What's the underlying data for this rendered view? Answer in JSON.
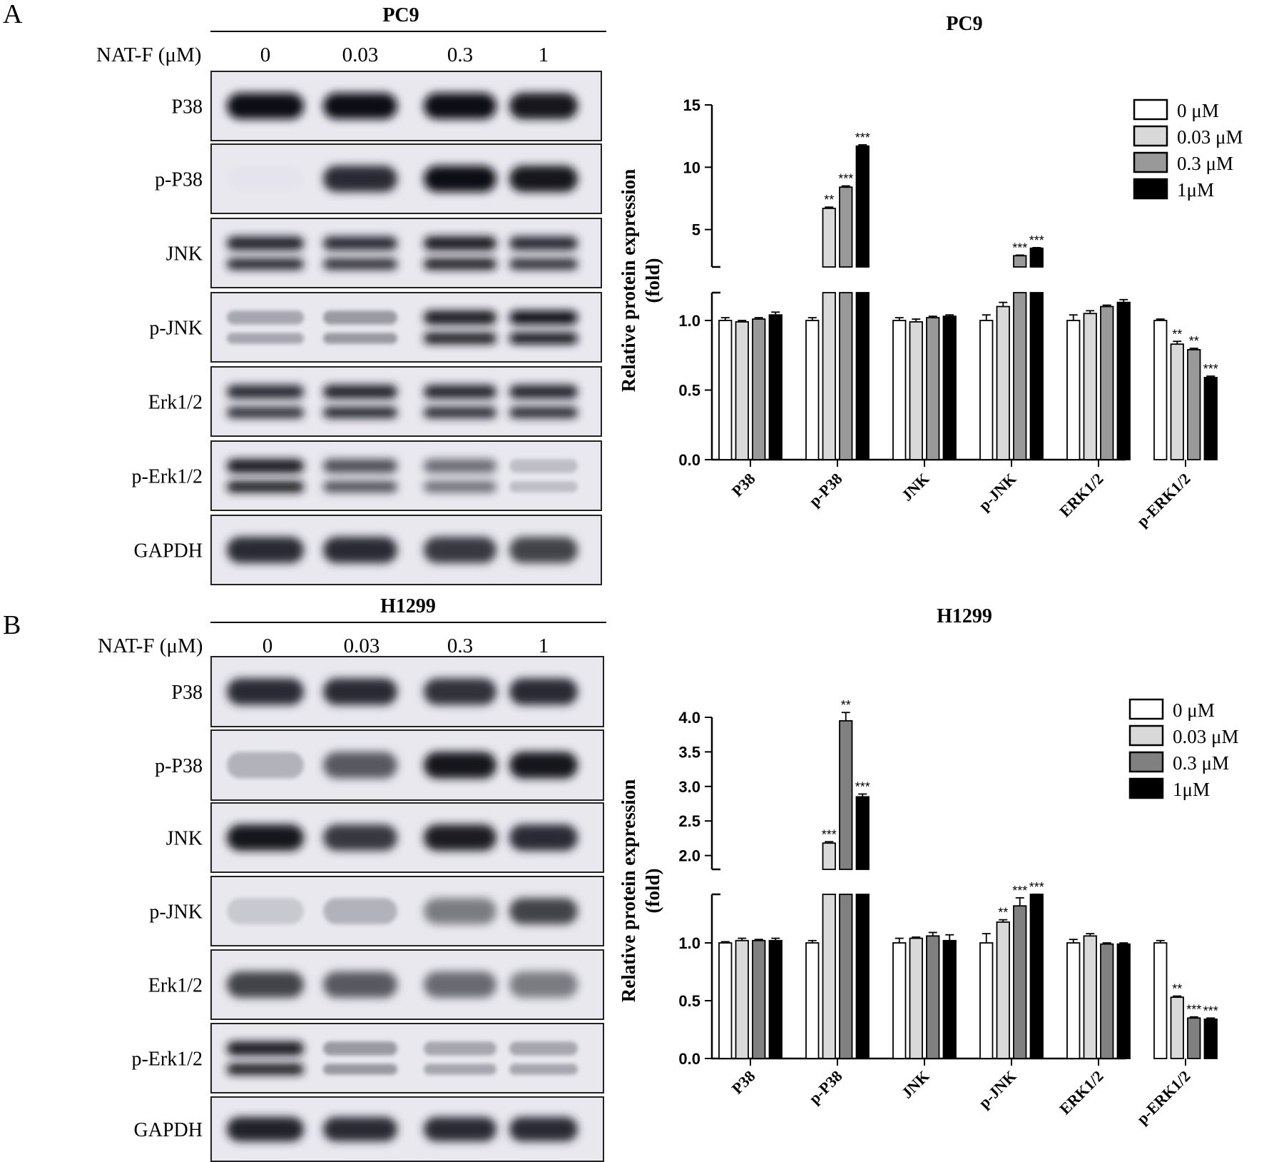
{
  "panels": [
    {
      "letter": "A",
      "cell_line": "PC9",
      "treatment_label": "NAT-F (μM)",
      "concentrations": [
        "0",
        "0.03",
        "0.3",
        "1"
      ],
      "blot_rows": [
        {
          "label": "P38",
          "intensity": [
            1.0,
            0.98,
            1.0,
            0.96
          ],
          "bands": 1
        },
        {
          "label": "p-P38",
          "intensity": [
            0.05,
            0.85,
            1.0,
            0.95
          ],
          "bands": 1
        },
        {
          "label": "JNK",
          "intensity": [
            0.9,
            0.85,
            0.95,
            0.85
          ],
          "bands": 2
        },
        {
          "label": "p-JNK",
          "intensity": [
            0.4,
            0.45,
            0.95,
            1.0
          ],
          "bands": 2
        },
        {
          "label": "Erk1/2",
          "intensity": [
            0.85,
            0.9,
            0.88,
            0.88
          ],
          "bands": 2
        },
        {
          "label": "p-Erk1/2",
          "intensity": [
            0.95,
            0.7,
            0.6,
            0.3
          ],
          "bands": 2
        },
        {
          "label": "GAPDH",
          "intensity": [
            0.85,
            0.85,
            0.8,
            0.75
          ],
          "bands": 1
        }
      ]
    },
    {
      "letter": "B",
      "cell_line": "H1299",
      "treatment_label": "NAT-F (μM)",
      "concentrations": [
        "0",
        "0.03",
        "0.3",
        "1"
      ],
      "blot_rows": [
        {
          "label": "P38",
          "intensity": [
            0.85,
            0.85,
            0.82,
            0.85
          ],
          "bands": 1
        },
        {
          "label": "p-P38",
          "intensity": [
            0.35,
            0.65,
            0.95,
            0.95
          ],
          "bands": 1
        },
        {
          "label": "JNK",
          "intensity": [
            0.95,
            0.8,
            0.92,
            0.85
          ],
          "bands": 1
        },
        {
          "label": "p-JNK",
          "intensity": [
            0.25,
            0.35,
            0.55,
            0.75
          ],
          "bands": 1
        },
        {
          "label": "Erk1/2",
          "intensity": [
            0.75,
            0.65,
            0.6,
            0.55
          ],
          "bands": 1
        },
        {
          "label": "p-Erk1/2",
          "intensity": [
            0.95,
            0.45,
            0.4,
            0.4
          ],
          "bands": 2
        },
        {
          "label": "GAPDH",
          "intensity": [
            0.9,
            0.85,
            0.85,
            0.85
          ],
          "bands": 1
        }
      ]
    }
  ],
  "chart_data": [
    {
      "type": "bar",
      "title": "PC9",
      "ylabel": "Relative protein expression",
      "ylabel2": "(fold)",
      "categories": [
        "P38",
        "p-P38",
        "JNK",
        "p-JNK",
        "ERK1/2",
        "p-ERK1/2"
      ],
      "series": [
        {
          "name": "0 μM",
          "color": "#ffffff",
          "values": [
            1.0,
            1.0,
            1.0,
            1.0,
            1.0,
            1.0
          ],
          "errors": [
            0.02,
            0.02,
            0.02,
            0.04,
            0.04,
            0.01
          ],
          "sig": [
            "",
            "",
            "",
            "",
            "",
            ""
          ]
        },
        {
          "name": "0.03 μM",
          "color": "#d9d9d9",
          "values": [
            0.99,
            6.7,
            0.99,
            1.1,
            1.05,
            0.83
          ],
          "errors": [
            0.01,
            0.1,
            0.02,
            0.03,
            0.02,
            0.02
          ],
          "sig": [
            "",
            "**",
            "",
            "",
            "",
            "**"
          ]
        },
        {
          "name": "0.3 μM",
          "color": "#999999",
          "values": [
            1.01,
            8.4,
            1.02,
            2.9,
            1.1,
            0.79
          ],
          "errors": [
            0.01,
            0.1,
            0.01,
            0.05,
            0.01,
            0.01
          ],
          "sig": [
            "",
            "***",
            "",
            "***",
            "",
            "**"
          ]
        },
        {
          "name": "1μM",
          "color": "#000000",
          "values": [
            1.04,
            11.7,
            1.03,
            3.5,
            1.13,
            0.59
          ],
          "errors": [
            0.02,
            0.1,
            0.01,
            0.05,
            0.02,
            0.01
          ],
          "sig": [
            "",
            "***",
            "",
            "***",
            "",
            "***"
          ]
        }
      ],
      "lower_axis": {
        "range": [
          0,
          1.2
        ],
        "ticks": [
          "0.0",
          "0.5",
          "1.0"
        ]
      },
      "upper_axis": {
        "range": [
          2,
          15
        ],
        "ticks": [
          "5",
          "10",
          "15"
        ]
      },
      "legend": "top-right"
    },
    {
      "type": "bar",
      "title": "H1299",
      "ylabel": "Relative protein expression",
      "ylabel2": "(fold)",
      "categories": [
        "P38",
        "p-P38",
        "JNK",
        "p-JNK",
        "ERK1/2",
        "p-ERK1/2"
      ],
      "series": [
        {
          "name": "0 μM",
          "color": "#ffffff",
          "values": [
            1.0,
            1.0,
            1.0,
            1.0,
            1.0,
            1.0
          ],
          "errors": [
            0.01,
            0.02,
            0.04,
            0.08,
            0.03,
            0.02
          ],
          "sig": [
            "",
            "",
            "",
            "",
            "",
            ""
          ]
        },
        {
          "name": "0.03 μM",
          "color": "#d9d9d9",
          "values": [
            1.02,
            2.18,
            1.04,
            1.18,
            1.06,
            0.53
          ],
          "errors": [
            0.02,
            0.02,
            0.01,
            0.02,
            0.02,
            0.01
          ],
          "sig": [
            "",
            "***",
            "",
            "**",
            "",
            "**"
          ]
        },
        {
          "name": "0.3 μM",
          "color": "#808080",
          "values": [
            1.02,
            3.95,
            1.06,
            1.32,
            0.99,
            0.35
          ],
          "errors": [
            0.01,
            0.12,
            0.03,
            0.07,
            0.01,
            0.01
          ],
          "sig": [
            "",
            "**",
            "",
            "***",
            "",
            "***"
          ]
        },
        {
          "name": "1μM",
          "color": "#000000",
          "values": [
            1.02,
            2.85,
            1.02,
            1.42,
            0.99,
            0.34
          ],
          "errors": [
            0.02,
            0.04,
            0.05,
            0.02,
            0.01,
            0.01
          ],
          "sig": [
            "",
            "***",
            "",
            "***",
            "",
            "***"
          ]
        }
      ],
      "lower_axis": {
        "range": [
          0,
          1.42
        ],
        "ticks": [
          "0.0",
          "0.5",
          "1.0"
        ]
      },
      "upper_axis": {
        "range": [
          1.8,
          4.0
        ],
        "ticks": [
          "2.0",
          "2.5",
          "3.0",
          "3.5",
          "4.0"
        ]
      },
      "legend": "top-right"
    }
  ]
}
